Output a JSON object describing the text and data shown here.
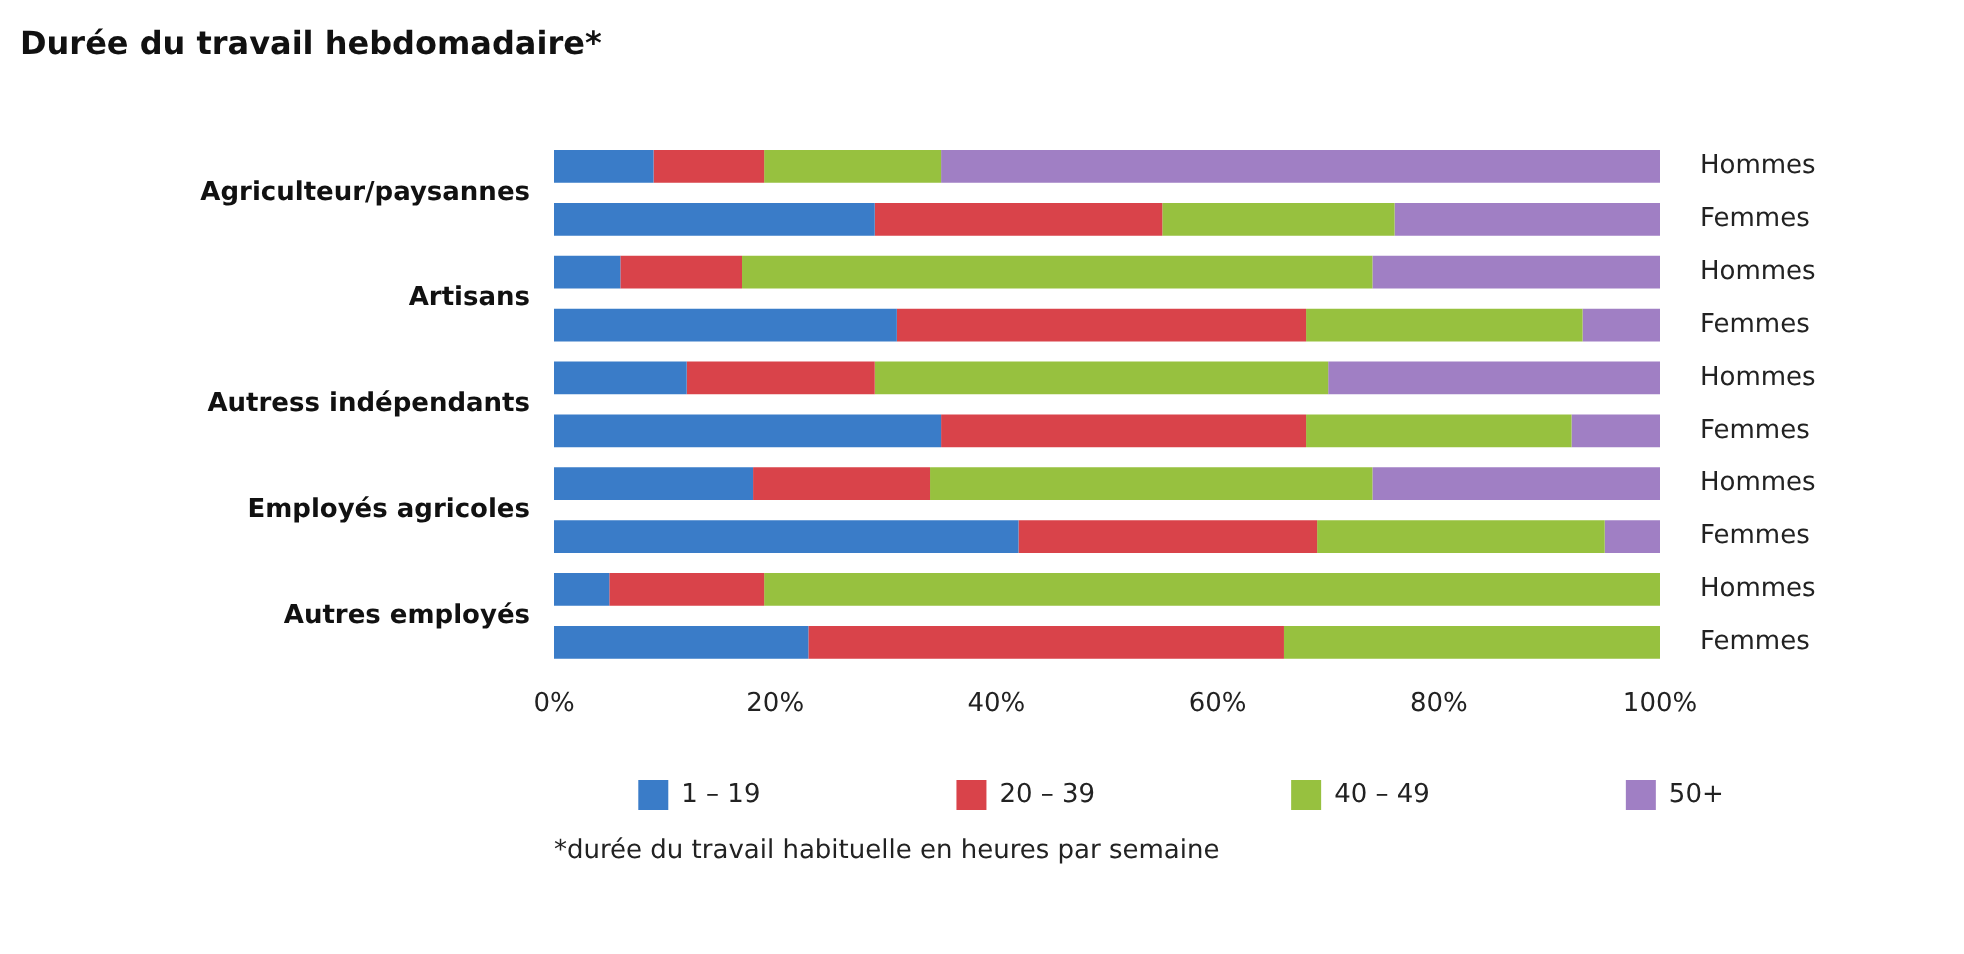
{
  "chart_data": {
    "type": "bar",
    "orientation": "horizontal",
    "stacked": true,
    "title": "Durée du travail hebdomadaire*",
    "categories": [
      "Hommes",
      "Femmes",
      "Hommes",
      "Femmes",
      "Hommes",
      "Femmes",
      "Hommes",
      "Femmes",
      "Hommes",
      "Femmes"
    ],
    "series": [
      {
        "name": "1 – 19",
        "color": "#3a7cc8",
        "values": [
          9,
          29,
          6,
          31,
          12,
          35,
          18,
          42,
          5,
          23
        ]
      },
      {
        "name": "20 – 39",
        "color": "#d9434a",
        "values": [
          10,
          26,
          11,
          37,
          17,
          33,
          16,
          27,
          14,
          43
        ]
      },
      {
        "name": "40 – 49",
        "color": "#97c13f",
        "values": [
          16,
          21,
          57,
          25,
          41,
          24,
          40,
          26,
          81,
          34
        ]
      },
      {
        "name": "50+",
        "color": "#a07fc4",
        "values": [
          65,
          24,
          26,
          7,
          30,
          8,
          26,
          5,
          0,
          0
        ]
      }
    ],
    "xlim": [
      0,
      100
    ],
    "xticks": [
      {
        "value": 0,
        "label": "0%"
      },
      {
        "value": 20,
        "label": "20%"
      },
      {
        "value": 40,
        "label": "40%"
      },
      {
        "value": 60,
        "label": "60%"
      },
      {
        "value": 80,
        "label": "80%"
      },
      {
        "value": 100,
        "label": "100%"
      }
    ],
    "annotations": [
      "Agriculteur/paysannes",
      "Artisans",
      "Autress indépendants",
      "Employés agricoles",
      "Autres employés",
      "*durée du travail habituelle en heures par semaine"
    ],
    "grid": false,
    "legend": "bottom"
  }
}
